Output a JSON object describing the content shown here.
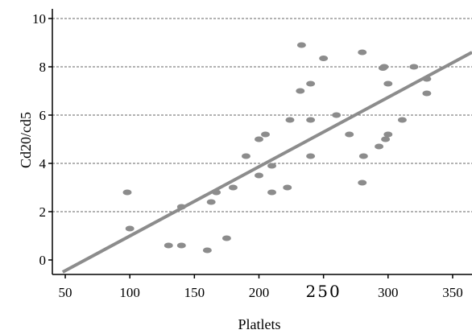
{
  "chart_data": {
    "type": "scatter",
    "xlabel": "Platlets",
    "ylabel": "Cd20/cd5",
    "xlim": [
      40,
      365
    ],
    "ylim": [
      -0.6,
      10.4
    ],
    "x_ticks": [
      50,
      100,
      150,
      200,
      250,
      300,
      350
    ],
    "x_tick_labels": [
      "50",
      "100",
      "150",
      "200",
      "250",
      "300",
      "350"
    ],
    "y_ticks": [
      0,
      2,
      4,
      6,
      8,
      10
    ],
    "y_tick_labels": [
      "0",
      "2",
      "4",
      "6",
      "8",
      "10"
    ],
    "grid": "horizontal dashed",
    "colors": {
      "points": "#8c8c8c",
      "fit_line": "#8c8c8c",
      "grid": "#666666",
      "axis": "#000000"
    },
    "series": [
      {
        "type": "scatter",
        "points": [
          [
            98,
            2.8
          ],
          [
            100,
            1.3
          ],
          [
            130,
            0.6
          ],
          [
            140,
            0.6
          ],
          [
            140,
            2.2
          ],
          [
            160,
            0.4
          ],
          [
            163,
            2.4
          ],
          [
            167,
            2.8
          ],
          [
            175,
            0.9
          ],
          [
            180,
            3.0
          ],
          [
            190,
            4.3
          ],
          [
            200,
            3.5
          ],
          [
            200,
            5.0
          ],
          [
            205,
            5.2
          ],
          [
            210,
            2.8
          ],
          [
            210,
            3.9
          ],
          [
            222,
            3.0
          ],
          [
            224,
            5.8
          ],
          [
            232,
            7.0
          ],
          [
            233,
            8.9
          ],
          [
            240,
            7.3
          ],
          [
            240,
            5.8
          ],
          [
            240,
            4.3
          ],
          [
            250,
            8.35
          ],
          [
            260,
            6.0
          ],
          [
            270,
            5.2
          ],
          [
            280,
            8.6
          ],
          [
            280,
            3.2
          ],
          [
            281,
            4.3
          ],
          [
            293,
            4.7
          ],
          [
            296,
            7.95
          ],
          [
            297,
            8.0
          ],
          [
            298,
            5.0
          ],
          [
            300,
            5.2
          ],
          [
            300,
            7.3
          ],
          [
            311,
            5.8
          ],
          [
            320,
            8.0
          ],
          [
            330,
            7.5
          ],
          [
            330,
            6.9
          ]
        ]
      },
      {
        "type": "line",
        "points": [
          [
            48,
            -0.5
          ],
          [
            365,
            8.6
          ]
        ]
      }
    ]
  }
}
